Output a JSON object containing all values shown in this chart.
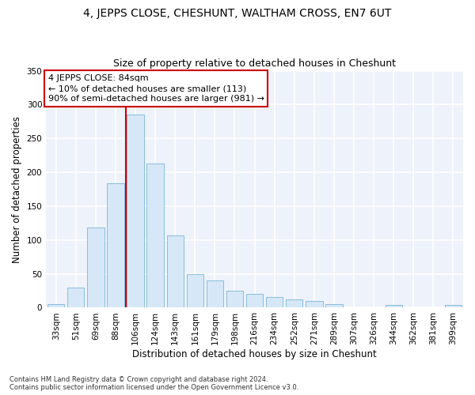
{
  "title": "4, JEPPS CLOSE, CHESHUNT, WALTHAM CROSS, EN7 6UT",
  "subtitle": "Size of property relative to detached houses in Cheshunt",
  "xlabel": "Distribution of detached houses by size in Cheshunt",
  "ylabel": "Number of detached properties",
  "categories": [
    "33sqm",
    "51sqm",
    "69sqm",
    "88sqm",
    "106sqm",
    "124sqm",
    "143sqm",
    "161sqm",
    "179sqm",
    "198sqm",
    "216sqm",
    "234sqm",
    "252sqm",
    "271sqm",
    "289sqm",
    "307sqm",
    "326sqm",
    "344sqm",
    "362sqm",
    "381sqm",
    "399sqm"
  ],
  "values": [
    5,
    30,
    118,
    184,
    285,
    213,
    107,
    50,
    40,
    25,
    20,
    16,
    12,
    10,
    5,
    0,
    0,
    4,
    0,
    0,
    4
  ],
  "bar_color": "#d6e8f7",
  "bar_edge_color": "#7ab5d8",
  "red_line_x": 3.5,
  "annotation_text": "4 JEPPS CLOSE: 84sqm\n← 10% of detached houses are smaller (113)\n90% of semi-detached houses are larger (981) →",
  "annotation_box_color": "#ffffff",
  "annotation_box_edge": "#cc0000",
  "red_line_color": "#cc0000",
  "ylim": [
    0,
    350
  ],
  "yticks": [
    0,
    50,
    100,
    150,
    200,
    250,
    300,
    350
  ],
  "background_color": "#eef2fb",
  "grid_color": "#ffffff",
  "footer": "Contains HM Land Registry data © Crown copyright and database right 2024.\nContains public sector information licensed under the Open Government Licence v3.0.",
  "title_fontsize": 10,
  "subtitle_fontsize": 9,
  "xlabel_fontsize": 8.5,
  "ylabel_fontsize": 8.5,
  "tick_fontsize": 7.5,
  "annotation_fontsize": 8,
  "footer_fontsize": 6
}
